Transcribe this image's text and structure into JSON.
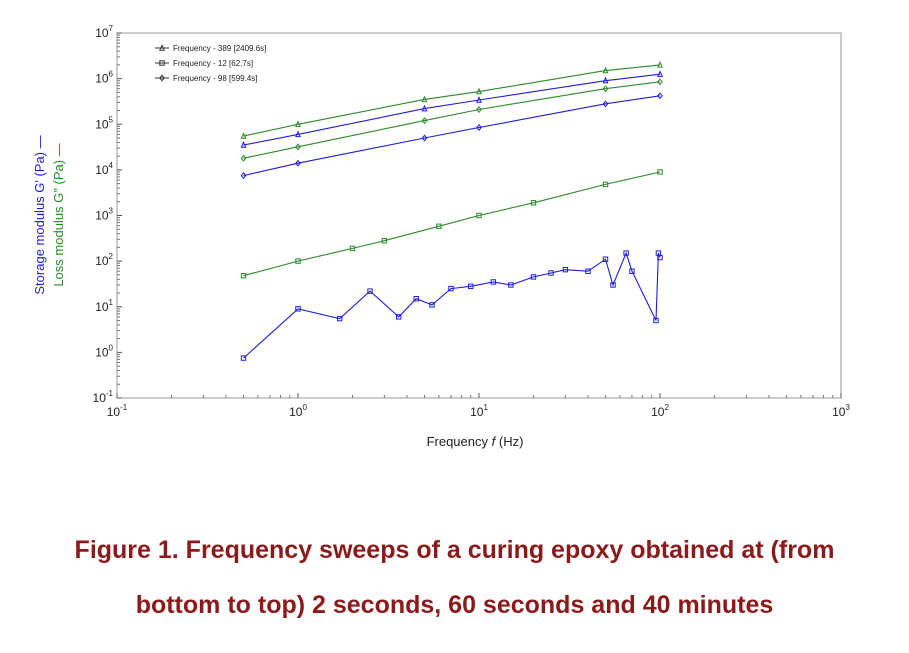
{
  "caption": {
    "line1": "Figure 1. Frequency sweeps of a curing epoxy obtained at (from",
    "line2": "bottom to top) 2 seconds, 60 seconds and 40 minutes"
  },
  "chart_data": {
    "type": "line",
    "xscale": "log",
    "yscale": "log",
    "xlim": [
      0.1,
      1000
    ],
    "ylim": [
      0.1,
      10000000
    ],
    "xlabel_text": "Frequency",
    "xlabel_symbol": "f",
    "xlabel_unit": "(Hz)",
    "ylabel_storage": "Storage modulus G′ (Pa) —",
    "ylabel_loss": "Loss modulus G″ (Pa) —",
    "x_ticks": [
      {
        "value": 0.1,
        "base": "10",
        "exp": "-1"
      },
      {
        "value": 1,
        "base": "10",
        "exp": "0"
      },
      {
        "value": 10,
        "base": "10",
        "exp": "1"
      },
      {
        "value": 100,
        "base": "10",
        "exp": "2"
      },
      {
        "value": 1000,
        "base": "10",
        "exp": "3"
      }
    ],
    "y_ticks": [
      {
        "value": 0.1,
        "base": "10",
        "exp": "-1"
      },
      {
        "value": 1,
        "base": "10",
        "exp": "0"
      },
      {
        "value": 10,
        "base": "10",
        "exp": "1"
      },
      {
        "value": 100,
        "base": "10",
        "exp": "2"
      },
      {
        "value": 1000,
        "base": "10",
        "exp": "3"
      },
      {
        "value": 10000,
        "base": "10",
        "exp": "4"
      },
      {
        "value": 100000,
        "base": "10",
        "exp": "5"
      },
      {
        "value": 1000000,
        "base": "10",
        "exp": "6"
      },
      {
        "value": 10000000,
        "base": "10",
        "exp": "7"
      }
    ],
    "legend": {
      "placement": "top-left",
      "entries": [
        {
          "label": "Frequency - 389 [2409.6s]",
          "marker": "triangle"
        },
        {
          "label": "Frequency - 12 [62.7s]",
          "marker": "square"
        },
        {
          "label": "Frequency - 98 [599.4s]",
          "marker": "diamond"
        }
      ]
    },
    "colors": {
      "storage": "#1f1fd0",
      "loss": "#2a8a2a"
    },
    "series": [
      {
        "kind": "G'' loss",
        "sweep_index": 0,
        "color": "#2a8a2a",
        "x": [
          0.5,
          1,
          5,
          10,
          50,
          100
        ],
        "y": [
          55000,
          100000,
          350000,
          520000,
          1500000,
          2000000
        ]
      },
      {
        "kind": "G' storage",
        "sweep_index": 0,
        "color": "#1f1fd0",
        "x": [
          0.5,
          1,
          5,
          10,
          50,
          100
        ],
        "y": [
          35000,
          60000,
          220000,
          340000,
          900000,
          1250000
        ]
      },
      {
        "kind": "G'' loss",
        "sweep_index": 2,
        "color": "#2a8a2a",
        "x": [
          0.5,
          1,
          5,
          10,
          50,
          100
        ],
        "y": [
          18000,
          32000,
          120000,
          210000,
          600000,
          850000
        ]
      },
      {
        "kind": "G' storage",
        "sweep_index": 2,
        "color": "#1f1fd0",
        "x": [
          0.5,
          1,
          5,
          10,
          50,
          100
        ],
        "y": [
          7500,
          14000,
          50000,
          85000,
          280000,
          420000
        ]
      },
      {
        "kind": "G'' loss",
        "sweep_index": 1,
        "color": "#2a8a2a",
        "x": [
          0.5,
          1,
          2,
          3,
          6,
          10,
          20,
          50,
          100
        ],
        "y": [
          48,
          100,
          190,
          280,
          580,
          1000,
          1900,
          4800,
          9000
        ]
      },
      {
        "kind": "G' storage",
        "sweep_index": 1,
        "color": "#1f1fd0",
        "x": [
          0.5,
          1,
          1.7,
          2.5,
          3.6,
          4.5,
          5.5,
          7,
          9,
          12,
          15,
          20,
          25,
          30,
          40,
          50,
          55,
          65,
          70,
          95,
          98,
          100
        ],
        "y": [
          0.75,
          9,
          5.5,
          22,
          6,
          15,
          11,
          25,
          28,
          35,
          30,
          45,
          55,
          65,
          60,
          110,
          30,
          150,
          60,
          5,
          150,
          120
        ]
      }
    ]
  }
}
